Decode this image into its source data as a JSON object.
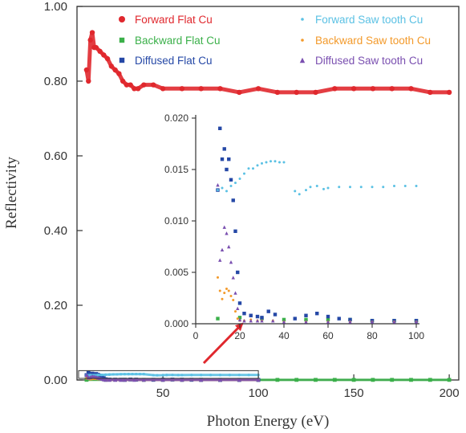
{
  "chart_data": {
    "type": "scatter",
    "xlabel": "Photon Energy (eV)",
    "ylabel": "Reflectivity",
    "xlim": [
      5,
      205
    ],
    "ylim": [
      0,
      1.0
    ],
    "xticks": [
      50,
      100,
      150,
      200
    ],
    "yticks": [
      0.0,
      0.2,
      0.4,
      0.6,
      0.8,
      1.0
    ],
    "yticklabels": [
      "0.00",
      "0.20",
      "0.40",
      "0.60",
      "0.80",
      "1.00"
    ],
    "legend_placement": "top",
    "series": [
      {
        "name": "Forward Flat Cu",
        "color": "#e0282e",
        "marker": "circle",
        "x": [
          10,
          11,
          12,
          13,
          14,
          15,
          17,
          19,
          21,
          23,
          25,
          27,
          29,
          31,
          33,
          35,
          37,
          40,
          45,
          50,
          60,
          70,
          80,
          90,
          100,
          110,
          120,
          130,
          140,
          150,
          160,
          170,
          180,
          190,
          200
        ],
        "y": [
          0.83,
          0.8,
          0.91,
          0.93,
          0.89,
          0.89,
          0.88,
          0.87,
          0.86,
          0.84,
          0.83,
          0.82,
          0.8,
          0.79,
          0.79,
          0.78,
          0.78,
          0.79,
          0.79,
          0.78,
          0.78,
          0.78,
          0.78,
          0.77,
          0.78,
          0.77,
          0.77,
          0.77,
          0.78,
          0.78,
          0.78,
          0.78,
          0.78,
          0.77,
          0.77
        ]
      },
      {
        "name": "Backward Flat Cu",
        "color": "#3bb04a",
        "marker": "square",
        "x": [
          10,
          20,
          30,
          40,
          50,
          60,
          70,
          80,
          90,
          100,
          110,
          120,
          130,
          140,
          150,
          160,
          170,
          180,
          190,
          200
        ],
        "y": [
          0.0005,
          0.0006,
          0.0005,
          0.0004,
          0.0004,
          0.0004,
          0.0004,
          0.0003,
          0.0003,
          0.0003,
          0.0003,
          0.0003,
          0.0003,
          0.0003,
          0.0003,
          0.0003,
          0.0003,
          0.0003,
          0.0003,
          0.0003
        ]
      },
      {
        "name": "Diffused  Flat Cu",
        "color": "#2548a6",
        "marker": "square",
        "x": [
          10,
          11,
          12,
          13,
          14,
          15,
          16,
          17,
          18,
          19,
          20,
          22,
          25,
          28,
          30,
          33,
          36,
          45,
          50,
          55,
          60,
          65,
          70,
          80,
          90,
          100
        ],
        "y": [
          0.013,
          0.019,
          0.016,
          0.017,
          0.015,
          0.016,
          0.014,
          0.012,
          0.009,
          0.005,
          0.002,
          0.001,
          0.0008,
          0.0007,
          0.0006,
          0.0012,
          0.0009,
          0.0005,
          0.0008,
          0.001,
          0.0007,
          0.0005,
          0.0004,
          0.0003,
          0.0003,
          0.0003
        ]
      },
      {
        "name": "Forward Saw tooth Cu",
        "color": "#5bc1e4",
        "marker": "dot",
        "x": [
          10,
          12,
          14,
          16,
          18,
          20,
          22,
          24,
          26,
          28,
          30,
          32,
          34,
          36,
          38,
          40,
          45,
          47,
          50,
          52,
          55,
          58,
          60,
          65,
          70,
          75,
          80,
          85,
          90,
          95,
          100
        ],
        "y": [
          0.013,
          0.0132,
          0.0129,
          0.0134,
          0.0137,
          0.0141,
          0.0146,
          0.0151,
          0.0151,
          0.0154,
          0.0156,
          0.0157,
          0.0158,
          0.0158,
          0.0157,
          0.0157,
          0.0129,
          0.0126,
          0.013,
          0.0133,
          0.0134,
          0.0131,
          0.0132,
          0.0133,
          0.0133,
          0.0133,
          0.0133,
          0.0133,
          0.0134,
          0.0134,
          0.0134
        ]
      },
      {
        "name": "Backward Saw tooth Cu",
        "color": "#f39a2b",
        "marker": "dot",
        "x": [
          10,
          11,
          12,
          13,
          14,
          15,
          16,
          17,
          18,
          19,
          20,
          22,
          25,
          28,
          30,
          35,
          40,
          50,
          60,
          70,
          80,
          90,
          100
        ],
        "y": [
          0.0045,
          0.0032,
          0.0024,
          0.003,
          0.0034,
          0.0032,
          0.0027,
          0.0023,
          0.0012,
          0.0005,
          0.0003,
          0.0003,
          0.0004,
          0.0003,
          0.0003,
          0.0003,
          0.0002,
          0.0002,
          0.0002,
          0.0002,
          0.0002,
          0.0002,
          0.0002
        ]
      },
      {
        "name": "Diffused Saw tooth Cu",
        "color": "#7a4fb0",
        "marker": "triangle",
        "x": [
          10,
          11,
          12,
          13,
          14,
          15,
          16,
          17,
          18,
          19,
          20,
          22,
          25,
          28,
          30,
          35,
          40,
          50,
          60,
          70,
          80,
          90,
          100
        ],
        "y": [
          0.0135,
          0.0062,
          0.0072,
          0.0094,
          0.0088,
          0.0075,
          0.006,
          0.0045,
          0.003,
          0.0015,
          0.0004,
          0.0003,
          0.0003,
          0.0003,
          0.0003,
          0.0003,
          0.0002,
          0.0002,
          0.0002,
          0.0002,
          0.0002,
          0.0002,
          0.0002
        ]
      }
    ],
    "inset": {
      "xlim": [
        0,
        100
      ],
      "ylim": [
        0,
        0.02
      ],
      "xticks": [
        0,
        20,
        40,
        60,
        80,
        100
      ],
      "yticks": [
        0.0,
        0.005,
        0.01,
        0.015,
        0.02
      ],
      "yticklabels": [
        "0.000",
        "0.005",
        "0.010",
        "0.015",
        "0.020"
      ]
    }
  }
}
